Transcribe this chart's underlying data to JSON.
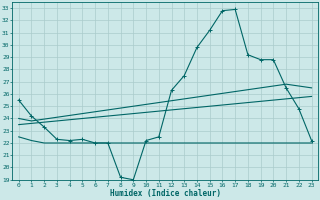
{
  "xlabel": "Humidex (Indice chaleur)",
  "bg_color": "#cce8e8",
  "grid_color": "#aacccc",
  "line_color": "#006666",
  "xlim": [
    -0.5,
    23.5
  ],
  "ylim": [
    19,
    33.5
  ],
  "xticks": [
    0,
    1,
    2,
    3,
    4,
    5,
    6,
    7,
    8,
    9,
    10,
    11,
    12,
    13,
    14,
    15,
    16,
    17,
    18,
    19,
    20,
    21,
    22,
    23
  ],
  "yticks": [
    19,
    20,
    21,
    22,
    23,
    24,
    25,
    26,
    27,
    28,
    29,
    30,
    31,
    32,
    33
  ],
  "curve1_x": [
    0,
    1,
    2,
    3,
    4,
    5,
    6,
    7,
    8,
    9,
    10,
    11,
    12,
    13,
    14,
    15,
    16,
    17,
    18,
    19,
    20,
    21,
    22,
    23
  ],
  "curve1_y": [
    25.5,
    24.2,
    23.3,
    22.3,
    22.2,
    22.3,
    22.0,
    22.0,
    19.2,
    19.0,
    22.2,
    22.5,
    26.3,
    27.5,
    29.8,
    31.2,
    32.8,
    32.9,
    29.2,
    28.8,
    28.8,
    26.5,
    24.8,
    22.2
  ],
  "curve2_x": [
    0,
    1,
    21,
    23
  ],
  "curve2_y": [
    24.0,
    23.8,
    26.8,
    26.5
  ],
  "curve3_x": [
    0,
    1,
    2,
    9,
    21,
    23
  ],
  "curve3_y": [
    22.5,
    22.2,
    22.0,
    22.0,
    22.0,
    22.0
  ],
  "curve4_x": [
    0,
    23
  ],
  "curve4_y": [
    23.5,
    25.8
  ]
}
